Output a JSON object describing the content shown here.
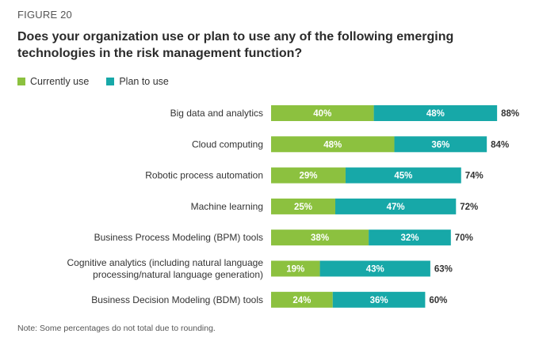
{
  "figure_label": "FIGURE 20",
  "title_line1": "Does your organization use or plan to use any of the following emerging",
  "title_line2": "technologies in the risk management function?",
  "note": "Note: Some percentages do not total due to rounding.",
  "colors": {
    "currently_use": "#8cc13f",
    "plan_to_use": "#17a8a8"
  },
  "chart_data": {
    "type": "bar",
    "orientation": "horizontal",
    "stacked": true,
    "legend_position": "top-left",
    "categories": [
      [
        "Big data and analytics"
      ],
      [
        "Cloud computing"
      ],
      [
        "Robotic process automation"
      ],
      [
        "Machine learning"
      ],
      [
        "Business Process Modeling (BPM) tools"
      ],
      [
        "Cognitive analytics (including natural language",
        "processing/natural language generation)"
      ],
      [
        "Business Decision Modeling (BDM) tools"
      ]
    ],
    "series": [
      {
        "name": "Currently use",
        "values": [
          40,
          48,
          29,
          25,
          38,
          19,
          24
        ],
        "labels": [
          "40%",
          "48%",
          "29%",
          "25%",
          "38%",
          "19%",
          "24%"
        ]
      },
      {
        "name": "Plan to use",
        "values": [
          48,
          36,
          45,
          47,
          32,
          43,
          36
        ],
        "labels": [
          "48%",
          "36%",
          "45%",
          "47%",
          "32%",
          "43%",
          "36%"
        ]
      }
    ],
    "totals": [
      88,
      84,
      74,
      72,
      70,
      63,
      60
    ],
    "total_labels": [
      "88%",
      "84%",
      "74%",
      "72%",
      "70%",
      "63%",
      "60%"
    ]
  }
}
